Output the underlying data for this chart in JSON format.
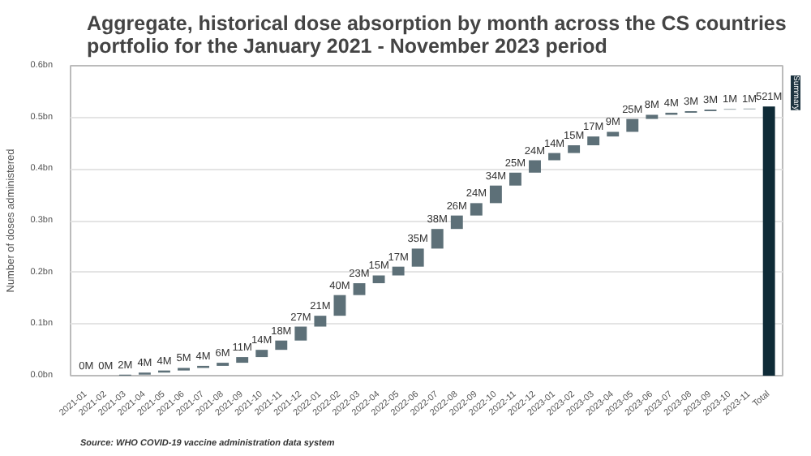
{
  "chart_data": {
    "type": "bar",
    "title": "Aggregate, historical dose absorption by month across the CS countries portfolio for the January 2021 - November 2023 period",
    "ylabel": "Number of doses administered",
    "annotations": [
      "Source: WHO COVID-19 vaccine administration data system",
      "Summary"
    ],
    "categories": [
      "2021-01",
      "2021-02",
      "2021-03",
      "2021-04",
      "2021-05",
      "2021-06",
      "2021-07",
      "2021-08",
      "2021-09",
      "2021-10",
      "2021-11",
      "2021-12",
      "2022-01",
      "2022-02",
      "2022-03",
      "2022-04",
      "2022-05",
      "2022-06",
      "2022-07",
      "2022-08",
      "2022-09",
      "2022-10",
      "2022-11",
      "2022-12",
      "2023-01",
      "2023-02",
      "2023-03",
      "2023-04",
      "2023-05",
      "2023-06",
      "2023-07",
      "2023-08",
      "2023-09",
      "2023-10",
      "2023-11",
      "Total"
    ],
    "values": [
      0,
      0,
      2000000,
      4000000,
      4000000,
      5000000,
      4000000,
      6000000,
      11000000,
      14000000,
      18000000,
      27000000,
      21000000,
      40000000,
      23000000,
      15000000,
      17000000,
      35000000,
      38000000,
      26000000,
      24000000,
      34000000,
      25000000,
      24000000,
      14000000,
      15000000,
      17000000,
      9000000,
      25000000,
      8000000,
      4000000,
      3000000,
      3000000,
      1000000,
      1000000,
      521000000
    ],
    "base": [
      null,
      null,
      0,
      2000000,
      6000000,
      10000000,
      15000000,
      19000000,
      25000000,
      36000000,
      50000000,
      68000000,
      95000000,
      116000000,
      156000000,
      179000000,
      194000000,
      211000000,
      246000000,
      284000000,
      310000000,
      334000000,
      368000000,
      393000000,
      417000000,
      431000000,
      446000000,
      463000000,
      472000000,
      497000000,
      505000000,
      509000000,
      512000000,
      515000000,
      516000000,
      0
    ],
    "value_labels": [
      "0M",
      "0M",
      "2M",
      "4M",
      "4M",
      "5M",
      "4M",
      "6M",
      "11M",
      "14M",
      "18M",
      "27M",
      "21M",
      "40M",
      "23M",
      "15M",
      "17M",
      "35M",
      "38M",
      "26M",
      "24M",
      "34M",
      "25M",
      "24M",
      "14M",
      "15M",
      "17M",
      "9M",
      "25M",
      "8M",
      "4M",
      "3M",
      "3M",
      "1M",
      "1M",
      "521M"
    ],
    "colors": [
      "#5d7078",
      "#5d7078",
      "#5d7078",
      "#5d7078",
      "#5d7078",
      "#5d7078",
      "#5d7078",
      "#5d7078",
      "#5d7078",
      "#5d7078",
      "#5d7078",
      "#5d7078",
      "#5d7078",
      "#5d7078",
      "#5d7078",
      "#5d7078",
      "#5d7078",
      "#5d7078",
      "#5d7078",
      "#5d7078",
      "#5d7078",
      "#5d7078",
      "#5d7078",
      "#5d7078",
      "#5d7078",
      "#5d7078",
      "#5d7078",
      "#5d7078",
      "#5d7078",
      "#5d7078",
      "#5d7078",
      "#5d7078",
      "#5d7078",
      "#5d7078",
      "#5d7078",
      "#0f2b37"
    ],
    "ylim": [
      0,
      600000000
    ],
    "yticks": [
      {
        "value": 0,
        "label": "0.0bn"
      },
      {
        "value": 100000000,
        "label": "0.1bn"
      },
      {
        "value": 200000000,
        "label": "0.2bn"
      },
      {
        "value": 300000000,
        "label": "0.3bn"
      },
      {
        "value": 400000000,
        "label": "0.4bn"
      },
      {
        "value": 500000000,
        "label": "0.5bn"
      },
      {
        "value": 600000000,
        "label": "0.6bn"
      }
    ],
    "grid": "y"
  }
}
